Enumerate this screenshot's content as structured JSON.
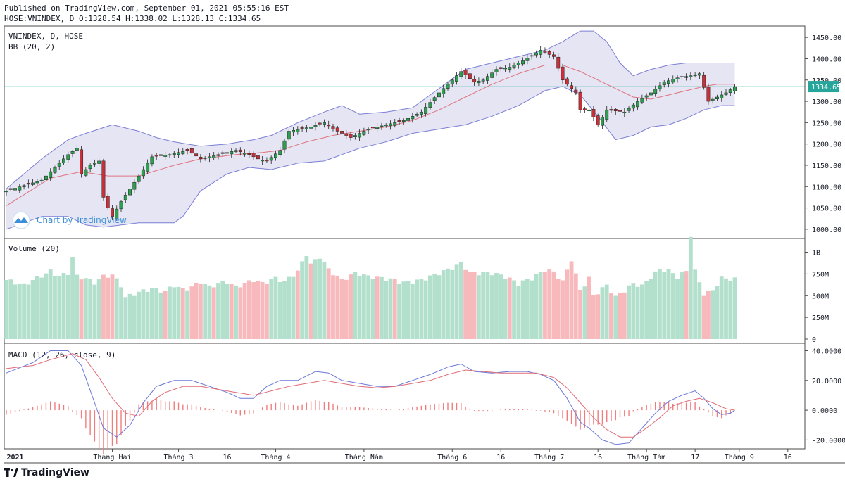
{
  "header": {
    "published": "Published on TradingView.com, September 01, 2021 05:55:16 EST",
    "ohlc": "HOSE:VNINDEX, D O:1328.54 H:1338.02 L:1328.13 C:1334.65"
  },
  "colors": {
    "up": "#26a69a",
    "up_body": "#2e9e4f",
    "down": "#c9303a",
    "vol_up": "#b3e0cc",
    "vol_down": "#f7b9bc",
    "bb_fill": "#dcdcf0",
    "bb_band": "#7b7fd4",
    "bb_mid": "#e0737d",
    "macd": "#6b79d8",
    "signal": "#e06b75",
    "hist": "#ef7d7d",
    "last_price": "#26a69a"
  },
  "footer": {
    "brand": "TradingView",
    "watermark": "Chart by TradingView",
    "brand_icon": "tradingview-logo-icon"
  },
  "chart_data": [
    {
      "type": "candlestick",
      "title": "VNINDEX, D, HOSE",
      "indicator": "BB (20, 2)",
      "ylim": [
        980,
        1475
      ],
      "yticks": [
        "1450.00",
        "1400.00",
        "1350.00",
        "1300.00",
        "1250.00",
        "1200.00",
        "1150.00",
        "1100.00",
        "1050.00",
        "1000.00"
      ],
      "ytick_values": [
        1450,
        1400,
        1350,
        1300,
        1250,
        1200,
        1150,
        1100,
        1050,
        1000
      ],
      "last_price_label": "1334.65",
      "last_price": 1334.65,
      "n_bars": 166,
      "xtick_labels": [
        "2021",
        "Tháng Hai",
        "Tháng 3",
        "16",
        "Tháng 4",
        "Tháng Năm",
        "Tháng 6",
        "16",
        "Tháng 7",
        "16",
        "Tháng Tám",
        "17",
        "Tháng 9",
        "16"
      ],
      "xtick_bars": [
        2,
        24,
        39,
        50,
        61,
        81,
        101,
        112,
        123,
        134,
        145,
        156,
        166,
        177
      ],
      "close_keys": [
        [
          0,
          1090
        ],
        [
          8,
          1115
        ],
        [
          14,
          1175
        ],
        [
          16,
          1190
        ],
        [
          17,
          1130
        ],
        [
          19,
          1150
        ],
        [
          21,
          1160
        ],
        [
          22,
          1075
        ],
        [
          23,
          1050
        ],
        [
          24,
          1030
        ],
        [
          26,
          1065
        ],
        [
          29,
          1110
        ],
        [
          33,
          1170
        ],
        [
          37,
          1175
        ],
        [
          41,
          1185
        ],
        [
          44,
          1165
        ],
        [
          48,
          1175
        ],
        [
          50,
          1180
        ],
        [
          52,
          1185
        ],
        [
          55,
          1175
        ],
        [
          57,
          1165
        ],
        [
          59,
          1160
        ],
        [
          62,
          1185
        ],
        [
          64,
          1230
        ],
        [
          69,
          1240
        ],
        [
          72,
          1250
        ],
        [
          74,
          1235
        ],
        [
          78,
          1215
        ],
        [
          82,
          1235
        ],
        [
          86,
          1245
        ],
        [
          90,
          1255
        ],
        [
          94,
          1275
        ],
        [
          98,
          1320
        ],
        [
          103,
          1370
        ],
        [
          106,
          1345
        ],
        [
          108,
          1350
        ],
        [
          111,
          1375
        ],
        [
          114,
          1380
        ],
        [
          117,
          1395
        ],
        [
          121,
          1420
        ],
        [
          124,
          1405
        ],
        [
          126,
          1350
        ],
        [
          129,
          1320
        ],
        [
          130,
          1280
        ],
        [
          132,
          1280
        ],
        [
          134,
          1245
        ],
        [
          136,
          1280
        ],
        [
          140,
          1275
        ],
        [
          143,
          1300
        ],
        [
          146,
          1320
        ],
        [
          149,
          1345
        ],
        [
          152,
          1355
        ],
        [
          155,
          1360
        ],
        [
          157,
          1365
        ],
        [
          159,
          1300
        ],
        [
          161,
          1310
        ],
        [
          163,
          1320
        ],
        [
          165,
          1334.65
        ]
      ],
      "bb_mid_keys": [
        [
          0,
          1055
        ],
        [
          10,
          1120
        ],
        [
          17,
          1135
        ],
        [
          23,
          1125
        ],
        [
          30,
          1125
        ],
        [
          38,
          1150
        ],
        [
          44,
          1165
        ],
        [
          52,
          1175
        ],
        [
          58,
          1180
        ],
        [
          62,
          1185
        ],
        [
          68,
          1205
        ],
        [
          74,
          1220
        ],
        [
          80,
          1230
        ],
        [
          86,
          1240
        ],
        [
          92,
          1255
        ],
        [
          98,
          1280
        ],
        [
          104,
          1310
        ],
        [
          110,
          1340
        ],
        [
          116,
          1365
        ],
        [
          122,
          1385
        ],
        [
          126,
          1385
        ],
        [
          130,
          1370
        ],
        [
          134,
          1350
        ],
        [
          138,
          1330
        ],
        [
          142,
          1310
        ],
        [
          146,
          1305
        ],
        [
          150,
          1315
        ],
        [
          154,
          1325
        ],
        [
          158,
          1335
        ],
        [
          161,
          1340
        ],
        [
          165,
          1340
        ]
      ],
      "bb_upper_keys": [
        [
          0,
          1095
        ],
        [
          8,
          1165
        ],
        [
          14,
          1210
        ],
        [
          18,
          1225
        ],
        [
          24,
          1245
        ],
        [
          30,
          1230
        ],
        [
          34,
          1215
        ],
        [
          38,
          1205
        ],
        [
          44,
          1195
        ],
        [
          50,
          1200
        ],
        [
          56,
          1210
        ],
        [
          60,
          1220
        ],
        [
          66,
          1250
        ],
        [
          72,
          1275
        ],
        [
          76,
          1290
        ],
        [
          80,
          1270
        ],
        [
          86,
          1275
        ],
        [
          92,
          1285
        ],
        [
          98,
          1330
        ],
        [
          104,
          1375
        ],
        [
          110,
          1390
        ],
        [
          116,
          1405
        ],
        [
          122,
          1420
        ],
        [
          126,
          1440
        ],
        [
          130,
          1465
        ],
        [
          133,
          1465
        ],
        [
          136,
          1440
        ],
        [
          139,
          1390
        ],
        [
          142,
          1360
        ],
        [
          146,
          1375
        ],
        [
          150,
          1385
        ],
        [
          154,
          1390
        ],
        [
          158,
          1390
        ],
        [
          162,
          1390
        ],
        [
          165,
          1390
        ]
      ],
      "bb_lower_keys": [
        [
          0,
          1000
        ],
        [
          8,
          1030
        ],
        [
          14,
          1030
        ],
        [
          18,
          1010
        ],
        [
          22,
          1005
        ],
        [
          26,
          1010
        ],
        [
          30,
          1015
        ],
        [
          38,
          1015
        ],
        [
          40,
          1030
        ],
        [
          44,
          1090
        ],
        [
          50,
          1130
        ],
        [
          55,
          1145
        ],
        [
          60,
          1140
        ],
        [
          66,
          1155
        ],
        [
          72,
          1160
        ],
        [
          80,
          1190
        ],
        [
          86,
          1205
        ],
        [
          92,
          1225
        ],
        [
          98,
          1235
        ],
        [
          104,
          1245
        ],
        [
          110,
          1265
        ],
        [
          116,
          1290
        ],
        [
          122,
          1325
        ],
        [
          126,
          1335
        ],
        [
          130,
          1315
        ],
        [
          134,
          1265
        ],
        [
          138,
          1210
        ],
        [
          142,
          1220
        ],
        [
          146,
          1240
        ],
        [
          150,
          1245
        ],
        [
          154,
          1260
        ],
        [
          158,
          1280
        ],
        [
          162,
          1290
        ],
        [
          165,
          1290
        ]
      ]
    },
    {
      "type": "bar",
      "title": "Volume (20)",
      "ylim": [
        0,
        1150
      ],
      "yticks": [
        "1B",
        "750M",
        "500M",
        "250M",
        "0"
      ],
      "ytick_values": [
        1000,
        750,
        500,
        250,
        0
      ],
      "unit": "M",
      "volume_keys": [
        [
          0,
          680
        ],
        [
          4,
          620
        ],
        [
          6,
          680
        ],
        [
          8,
          730
        ],
        [
          10,
          780
        ],
        [
          12,
          720
        ],
        [
          14,
          760
        ],
        [
          15,
          940
        ],
        [
          16,
          720
        ],
        [
          18,
          700
        ],
        [
          20,
          650
        ],
        [
          22,
          720
        ],
        [
          24,
          740
        ],
        [
          26,
          620
        ],
        [
          27,
          480
        ],
        [
          30,
          540
        ],
        [
          33,
          580
        ],
        [
          36,
          550
        ],
        [
          38,
          620
        ],
        [
          40,
          570
        ],
        [
          42,
          600
        ],
        [
          44,
          660
        ],
        [
          46,
          600
        ],
        [
          48,
          640
        ],
        [
          50,
          660
        ],
        [
          52,
          600
        ],
        [
          54,
          640
        ],
        [
          56,
          680
        ],
        [
          58,
          640
        ],
        [
          61,
          700
        ],
        [
          63,
          660
        ],
        [
          66,
          780
        ],
        [
          68,
          980
        ],
        [
          69,
          860
        ],
        [
          71,
          950
        ],
        [
          73,
          800
        ],
        [
          76,
          680
        ],
        [
          79,
          760
        ],
        [
          82,
          720
        ],
        [
          85,
          700
        ],
        [
          88,
          680
        ],
        [
          90,
          650
        ],
        [
          94,
          680
        ],
        [
          97,
          740
        ],
        [
          101,
          820
        ],
        [
          103,
          880
        ],
        [
          105,
          760
        ],
        [
          107,
          760
        ],
        [
          110,
          760
        ],
        [
          113,
          720
        ],
        [
          116,
          640
        ],
        [
          119,
          700
        ],
        [
          122,
          800
        ],
        [
          124,
          770
        ],
        [
          126,
          660
        ],
        [
          128,
          920
        ],
        [
          130,
          560
        ],
        [
          132,
          700
        ],
        [
          133,
          500
        ],
        [
          136,
          620
        ],
        [
          138,
          480
        ],
        [
          140,
          560
        ],
        [
          142,
          640
        ],
        [
          144,
          610
        ],
        [
          146,
          720
        ],
        [
          148,
          800
        ],
        [
          150,
          790
        ],
        [
          152,
          720
        ],
        [
          154,
          780
        ],
        [
          155,
          1200
        ],
        [
          156,
          780
        ],
        [
          158,
          520
        ],
        [
          160,
          560
        ],
        [
          162,
          700
        ],
        [
          164,
          690
        ],
        [
          165,
          690
        ]
      ]
    },
    {
      "type": "line",
      "title": "MACD (12, 26, close, 9)",
      "ylim": [
        -25,
        44
      ],
      "yticks": [
        "40.0000",
        "20.0000",
        "0.0000",
        "-20.0000"
      ],
      "ytick_values": [
        40,
        20,
        0,
        -20
      ],
      "macd_keys": [
        [
          0,
          25
        ],
        [
          6,
          32
        ],
        [
          10,
          40
        ],
        [
          14,
          40
        ],
        [
          17,
          30
        ],
        [
          20,
          5
        ],
        [
          22,
          -12
        ],
        [
          25,
          -18
        ],
        [
          28,
          -10
        ],
        [
          31,
          5
        ],
        [
          34,
          16
        ],
        [
          38,
          20
        ],
        [
          42,
          20
        ],
        [
          46,
          16
        ],
        [
          50,
          12
        ],
        [
          53,
          8
        ],
        [
          56,
          8
        ],
        [
          59,
          16
        ],
        [
          62,
          20
        ],
        [
          66,
          20
        ],
        [
          70,
          26
        ],
        [
          73,
          25
        ],
        [
          76,
          20
        ],
        [
          80,
          18
        ],
        [
          84,
          16
        ],
        [
          88,
          16
        ],
        [
          92,
          20
        ],
        [
          96,
          24
        ],
        [
          100,
          29
        ],
        [
          103,
          31
        ],
        [
          106,
          26
        ],
        [
          110,
          25
        ],
        [
          114,
          26
        ],
        [
          118,
          26
        ],
        [
          121,
          24
        ],
        [
          124,
          20
        ],
        [
          127,
          8
        ],
        [
          130,
          -8
        ],
        [
          132,
          -12
        ],
        [
          135,
          -20
        ],
        [
          138,
          -23
        ],
        [
          141,
          -22
        ],
        [
          144,
          -12
        ],
        [
          147,
          -2
        ],
        [
          150,
          6
        ],
        [
          153,
          10
        ],
        [
          156,
          13
        ],
        [
          158,
          8
        ],
        [
          160,
          1
        ],
        [
          162,
          -3
        ],
        [
          164,
          -2
        ],
        [
          165,
          0
        ]
      ],
      "signal_keys": [
        [
          0,
          28
        ],
        [
          6,
          30
        ],
        [
          10,
          34
        ],
        [
          15,
          38
        ],
        [
          18,
          34
        ],
        [
          21,
          22
        ],
        [
          24,
          8
        ],
        [
          27,
          -2
        ],
        [
          30,
          -4
        ],
        [
          33,
          6
        ],
        [
          36,
          12
        ],
        [
          40,
          16
        ],
        [
          44,
          16
        ],
        [
          48,
          14
        ],
        [
          52,
          12
        ],
        [
          56,
          10
        ],
        [
          60,
          13
        ],
        [
          64,
          16
        ],
        [
          68,
          18
        ],
        [
          72,
          20
        ],
        [
          76,
          18
        ],
        [
          80,
          16
        ],
        [
          84,
          15
        ],
        [
          88,
          16
        ],
        [
          92,
          18
        ],
        [
          96,
          20
        ],
        [
          100,
          24
        ],
        [
          104,
          27
        ],
        [
          108,
          26
        ],
        [
          112,
          25
        ],
        [
          116,
          25
        ],
        [
          120,
          25
        ],
        [
          124,
          22
        ],
        [
          127,
          15
        ],
        [
          130,
          5
        ],
        [
          133,
          -5
        ],
        [
          136,
          -13
        ],
        [
          139,
          -18
        ],
        [
          142,
          -18
        ],
        [
          145,
          -12
        ],
        [
          148,
          -5
        ],
        [
          151,
          3
        ],
        [
          154,
          6
        ],
        [
          157,
          8
        ],
        [
          160,
          5
        ],
        [
          163,
          1
        ],
        [
          165,
          0
        ]
      ]
    }
  ]
}
